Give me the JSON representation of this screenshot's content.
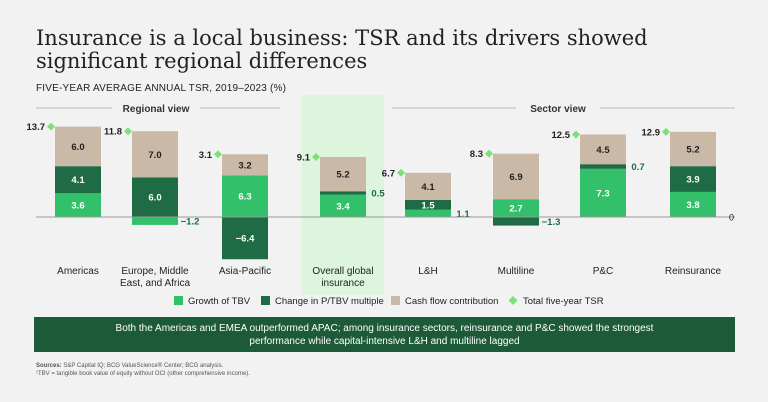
{
  "title": "Insurance is a local business: TSR and its drivers showed significant regional differences",
  "subtitle": "FIVE-YEAR AVERAGE ANNUAL TSR, 2019–2023 (%)",
  "group_labels": {
    "regional": "Regional view",
    "sector": "Sector view"
  },
  "zero_label": "0",
  "legend": {
    "growth": "Growth of TBV",
    "multiple": "Change in P/TBV multiple",
    "cash": "Cash flow contribution",
    "total": "Total five-year TSR"
  },
  "colors": {
    "growth": "#33c06a",
    "multiple": "#1e6b45",
    "cash": "#c9b9a6",
    "total": "#7ee07a",
    "highlight": "#dcf5dc",
    "banner": "#1c5a38"
  },
  "banner_text": "Both the Americas and EMEA outperformed APAC; among insurance sectors, reinsurance and P&C showed the strongest performance while capital-intensive L&H and multiline lagged",
  "sources_label": "Sources:",
  "sources_text": "S&P Capital IQ; BCG ValueScience® Center; BCG analysis.",
  "footnote": "¹TBV = tangible book value of equity without OCI (other comprehensive income).",
  "chart_data": {
    "type": "bar",
    "stacked": true,
    "categories": [
      "Americas",
      "Europe, Middle East, and Africa",
      "Asia-Pacific",
      "Overall global insurance",
      "L&H",
      "Multiline",
      "P&C",
      "Reinsurance"
    ],
    "category_lines": [
      [
        "Americas"
      ],
      [
        "Europe, Middle",
        "East, and Africa"
      ],
      [
        "Asia-Pacific"
      ],
      [
        "Overall global",
        "insurance"
      ],
      [
        "L&H"
      ],
      [
        "Multiline"
      ],
      [
        "P&C"
      ],
      [
        "Reinsurance"
      ]
    ],
    "series": [
      {
        "name": "Growth of TBV",
        "values": [
          3.6,
          -1.2,
          6.3,
          3.4,
          1.1,
          2.7,
          7.3,
          3.8
        ]
      },
      {
        "name": "Change in P/TBV multiple",
        "values": [
          4.1,
          6.0,
          -6.4,
          0.5,
          1.5,
          -1.3,
          0.7,
          3.9
        ]
      },
      {
        "name": "Cash flow contribution",
        "values": [
          6.0,
          7.0,
          3.2,
          5.2,
          4.1,
          6.9,
          4.5,
          5.2
        ]
      }
    ],
    "total_tsr": [
      13.7,
      11.8,
      3.1,
      9.1,
      6.7,
      8.3,
      12.5,
      12.9
    ],
    "highlighted_category": "Overall global insurance",
    "groups": [
      {
        "name": "Regional view",
        "categories": [
          "Americas",
          "Europe, Middle East, and Africa",
          "Asia-Pacific"
        ]
      },
      {
        "name": "Sector view",
        "categories": [
          "L&H",
          "Multiline",
          "P&C",
          "Reinsurance"
        ]
      }
    ],
    "ylim": [
      -7,
      14
    ]
  }
}
